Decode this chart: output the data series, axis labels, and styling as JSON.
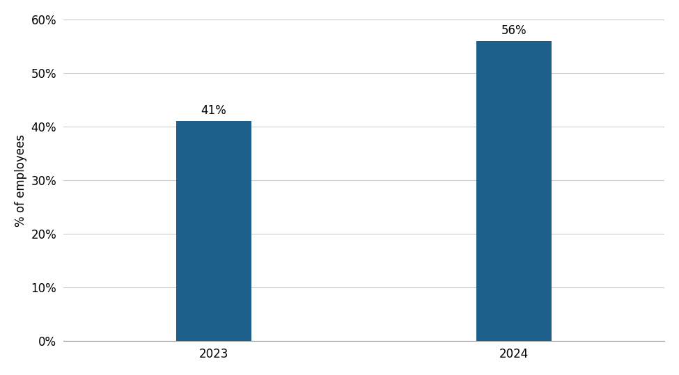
{
  "categories": [
    "2023",
    "2024"
  ],
  "values": [
    41,
    56
  ],
  "bar_color": "#1c5f8a",
  "ylabel": "% of employees",
  "ylim": [
    0,
    60
  ],
  "yticks": [
    0,
    10,
    20,
    30,
    40,
    50,
    60
  ],
  "ytick_labels": [
    "0%",
    "10%",
    "20%",
    "30%",
    "40%",
    "50%",
    "60%"
  ],
  "bar_labels": [
    "41%",
    "56%"
  ],
  "background_color": "#ffffff",
  "bar_width": 0.25,
  "label_fontsize": 12,
  "tick_fontsize": 12,
  "ylabel_fontsize": 12,
  "grid_color": "#cccccc",
  "grid_linewidth": 0.8
}
